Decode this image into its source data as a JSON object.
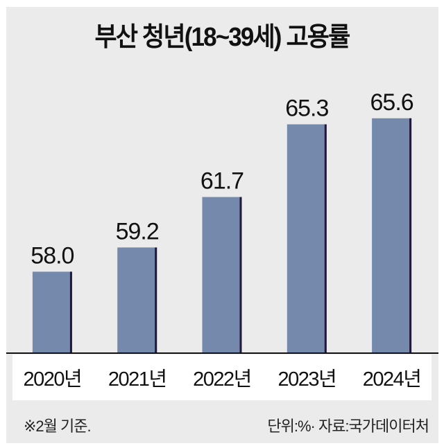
{
  "chart_data": {
    "type": "bar",
    "title": "부산 청년(18~39세) 고용률",
    "categories": [
      "2020년",
      "2021년",
      "2022년",
      "2023년",
      "2024년"
    ],
    "values": [
      58.0,
      59.2,
      61.7,
      65.3,
      65.6
    ],
    "value_labels": [
      "58.0",
      "59.2",
      "61.7",
      "65.3",
      "65.6"
    ],
    "xlabel": "",
    "ylabel": "",
    "ylim": [
      54,
      67
    ],
    "grid": false,
    "colors": {
      "bar": "#7589ad",
      "bar_edge": "#22183a",
      "axis": "#111111"
    }
  },
  "footer": {
    "note": "※2월 기준.",
    "source": "단위:%· 자료:국가데이터처"
  }
}
